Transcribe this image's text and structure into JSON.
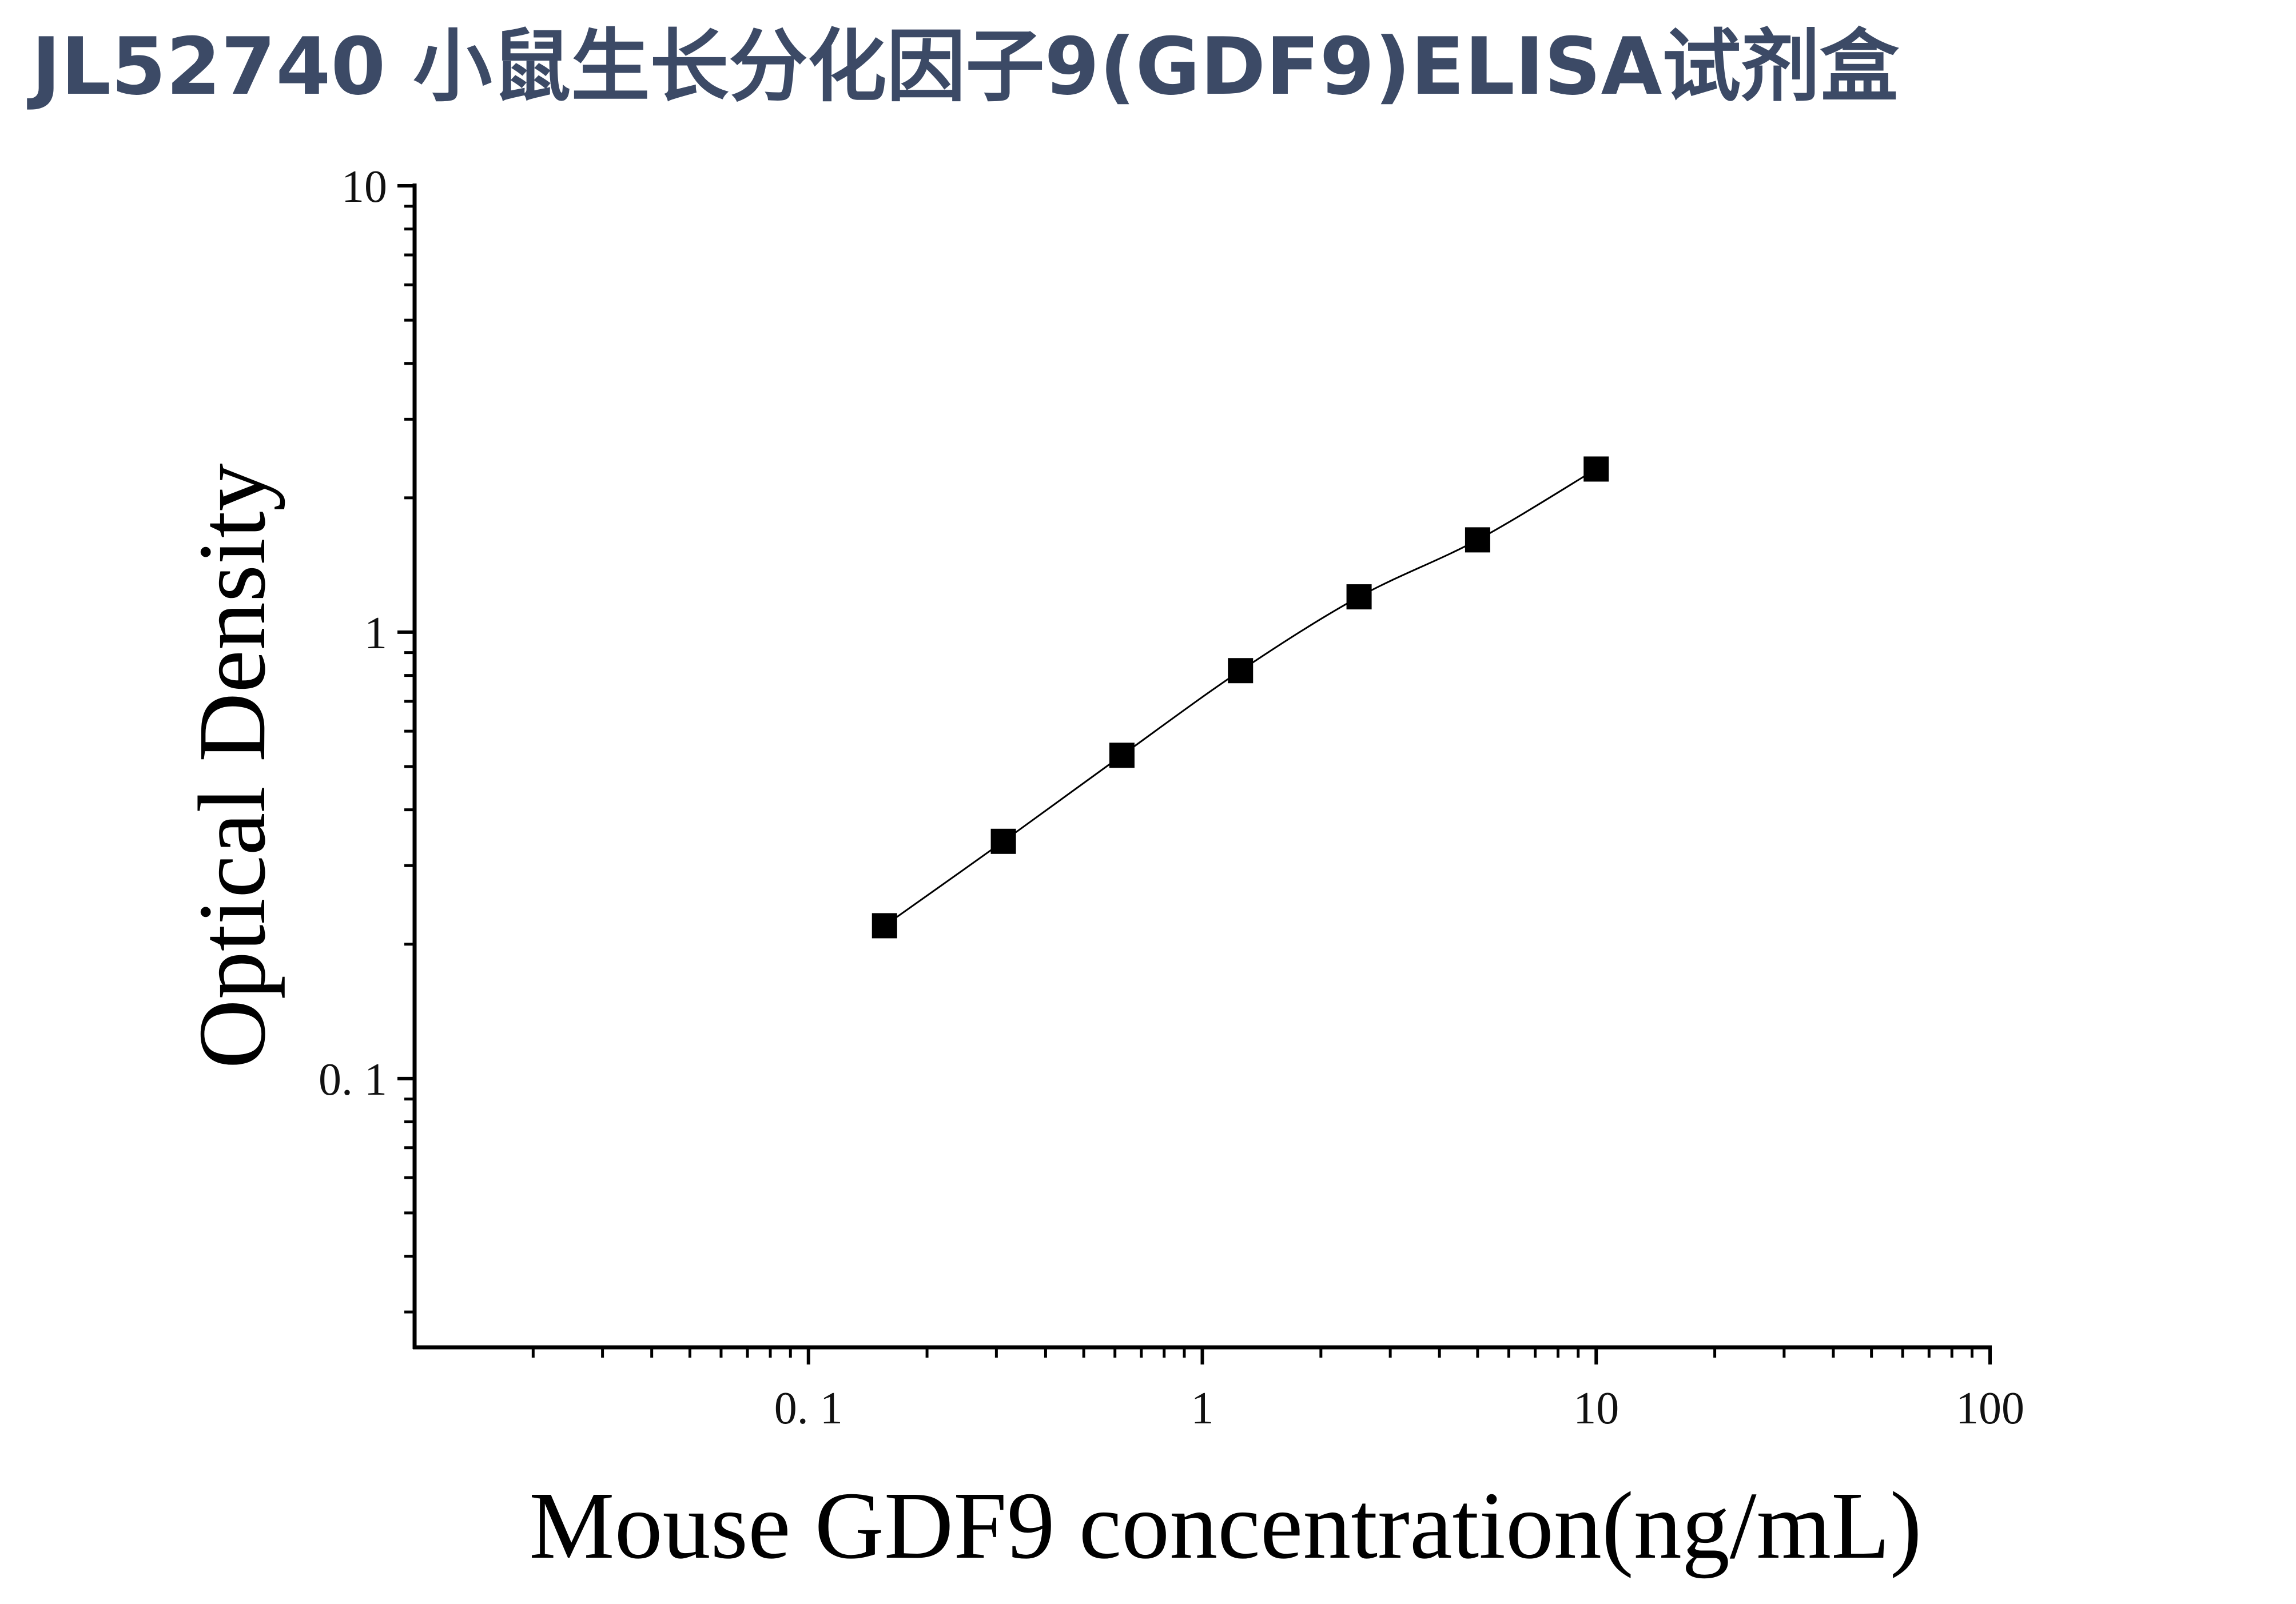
{
  "title": "JL52740 小鼠生长分化因子9(GDF9)ELISA试剂盒",
  "chart_data": {
    "type": "scatter",
    "xlabel": "Mouse GDF9 concentration(ng/mL)",
    "ylabel": "Optical Density",
    "xscale": "log",
    "yscale": "log",
    "xlim": [
      0.01,
      100
    ],
    "ylim": [
      0.025,
      10
    ],
    "x_ticks": [
      {
        "value": 0.1,
        "label": "0. 1"
      },
      {
        "value": 1,
        "label": "1"
      },
      {
        "value": 10,
        "label": "10"
      },
      {
        "value": 100,
        "label": "100"
      }
    ],
    "y_ticks": [
      {
        "value": 0.1,
        "label": "0. 1"
      },
      {
        "value": 1,
        "label": "1"
      },
      {
        "value": 10,
        "label": "10"
      }
    ],
    "grid": false,
    "legend": "none",
    "marker": "square",
    "fit_line": true,
    "series": [
      {
        "x": [
          0.156,
          0.3125,
          0.625,
          1.25,
          2.5,
          5,
          10
        ],
        "y": [
          0.22,
          0.34,
          0.53,
          0.82,
          1.2,
          1.61,
          2.32
        ]
      }
    ]
  }
}
